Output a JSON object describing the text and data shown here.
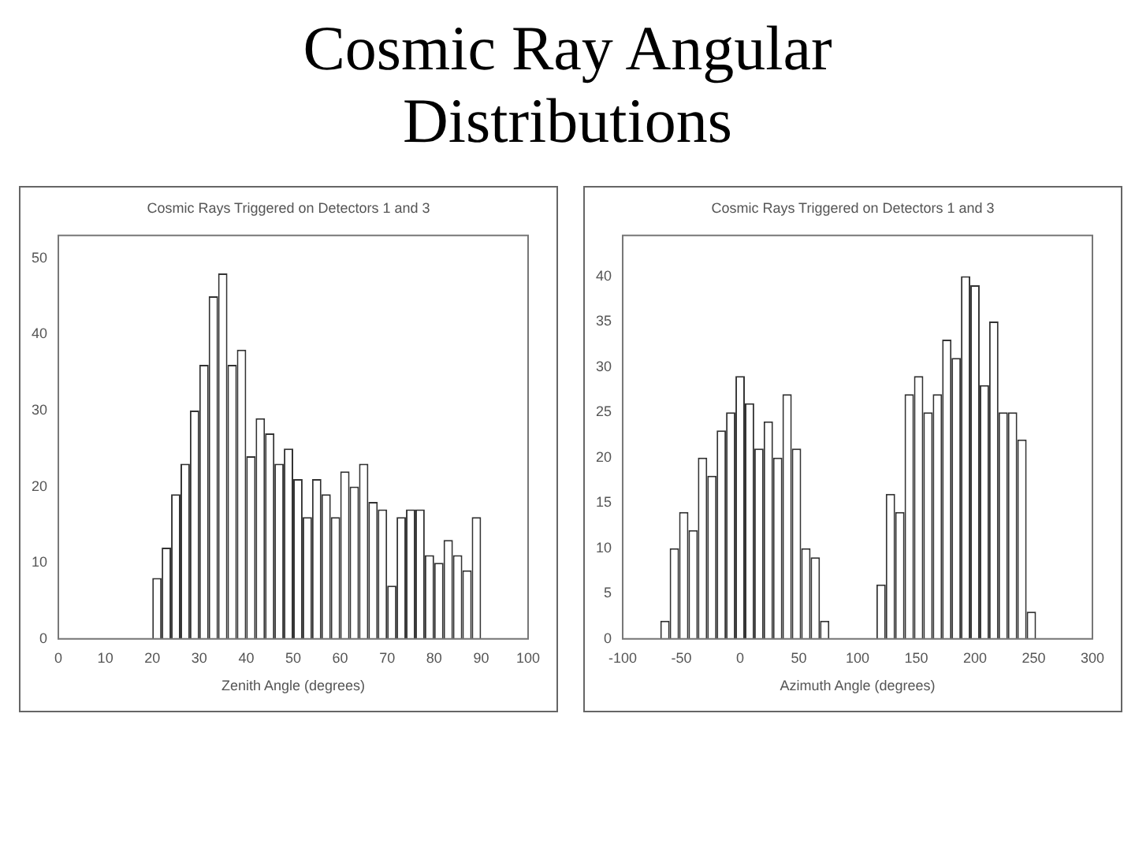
{
  "chart_data": [
    {
      "type": "histogram",
      "title": "Cosmic Ray Angular Distributions",
      "subtitle": "Cosmic Rays Triggered on Detectors 1 and 3",
      "xlabel": "Zenith Angle (degrees)",
      "bins": [
        20,
        22,
        24,
        26,
        28,
        30,
        32,
        34,
        36,
        38,
        40,
        42,
        44,
        46,
        48,
        50,
        52,
        54,
        56,
        58,
        60,
        62,
        64,
        66,
        68,
        70,
        72,
        74,
        76,
        78,
        80,
        82,
        84,
        86,
        88,
        90
      ],
      "values": [
        8,
        12,
        19,
        23,
        30,
        36,
        45,
        48,
        36,
        38,
        24,
        29,
        27,
        23,
        25,
        21,
        16,
        21,
        19,
        16,
        22,
        20,
        23,
        18,
        17,
        7,
        16,
        17,
        17,
        11,
        10,
        13,
        11,
        9,
        16
      ],
      "color": "#333333",
      "xlim": [
        0,
        100
      ],
      "xticks": [
        0,
        10,
        20,
        30,
        40,
        50,
        60,
        70,
        80,
        90,
        100
      ],
      "ylim": [
        0,
        53
      ],
      "yticks": [
        0,
        10,
        20,
        30,
        40,
        50
      ],
      "grid": false
    },
    {
      "type": "histogram",
      "title": "Cosmic Rays Triggered on Detectors 1 and 3",
      "xlabel": "Azimuth Angle (degrees)",
      "bins": [
        -68,
        -60,
        -52,
        -44,
        -36,
        -28,
        -20,
        -12,
        -4,
        4,
        12,
        20,
        28,
        36,
        44,
        52,
        60,
        68,
        76,
        84,
        92,
        100,
        108,
        116,
        124,
        132,
        140,
        148,
        156,
        164,
        172,
        180,
        188,
        196,
        204,
        212,
        220,
        228,
        236,
        244,
        252
      ],
      "values": [
        2,
        10,
        14,
        12,
        20,
        18,
        23,
        25,
        29,
        26,
        21,
        24,
        20,
        27,
        21,
        10,
        9,
        2,
        0,
        0,
        0,
        0,
        0,
        6,
        16,
        14,
        27,
        29,
        25,
        27,
        33,
        31,
        40,
        39,
        28,
        35,
        25,
        25,
        22,
        3
      ],
      "color": "#333333",
      "xlim": [
        -100,
        300
      ],
      "xticks": [
        -100,
        -50,
        0,
        50,
        100,
        150,
        200,
        250,
        300
      ],
      "ylim": [
        0,
        44.5
      ],
      "yticks": [
        0,
        5,
        10,
        15,
        20,
        25,
        30,
        35,
        40
      ],
      "grid": false
    }
  ]
}
